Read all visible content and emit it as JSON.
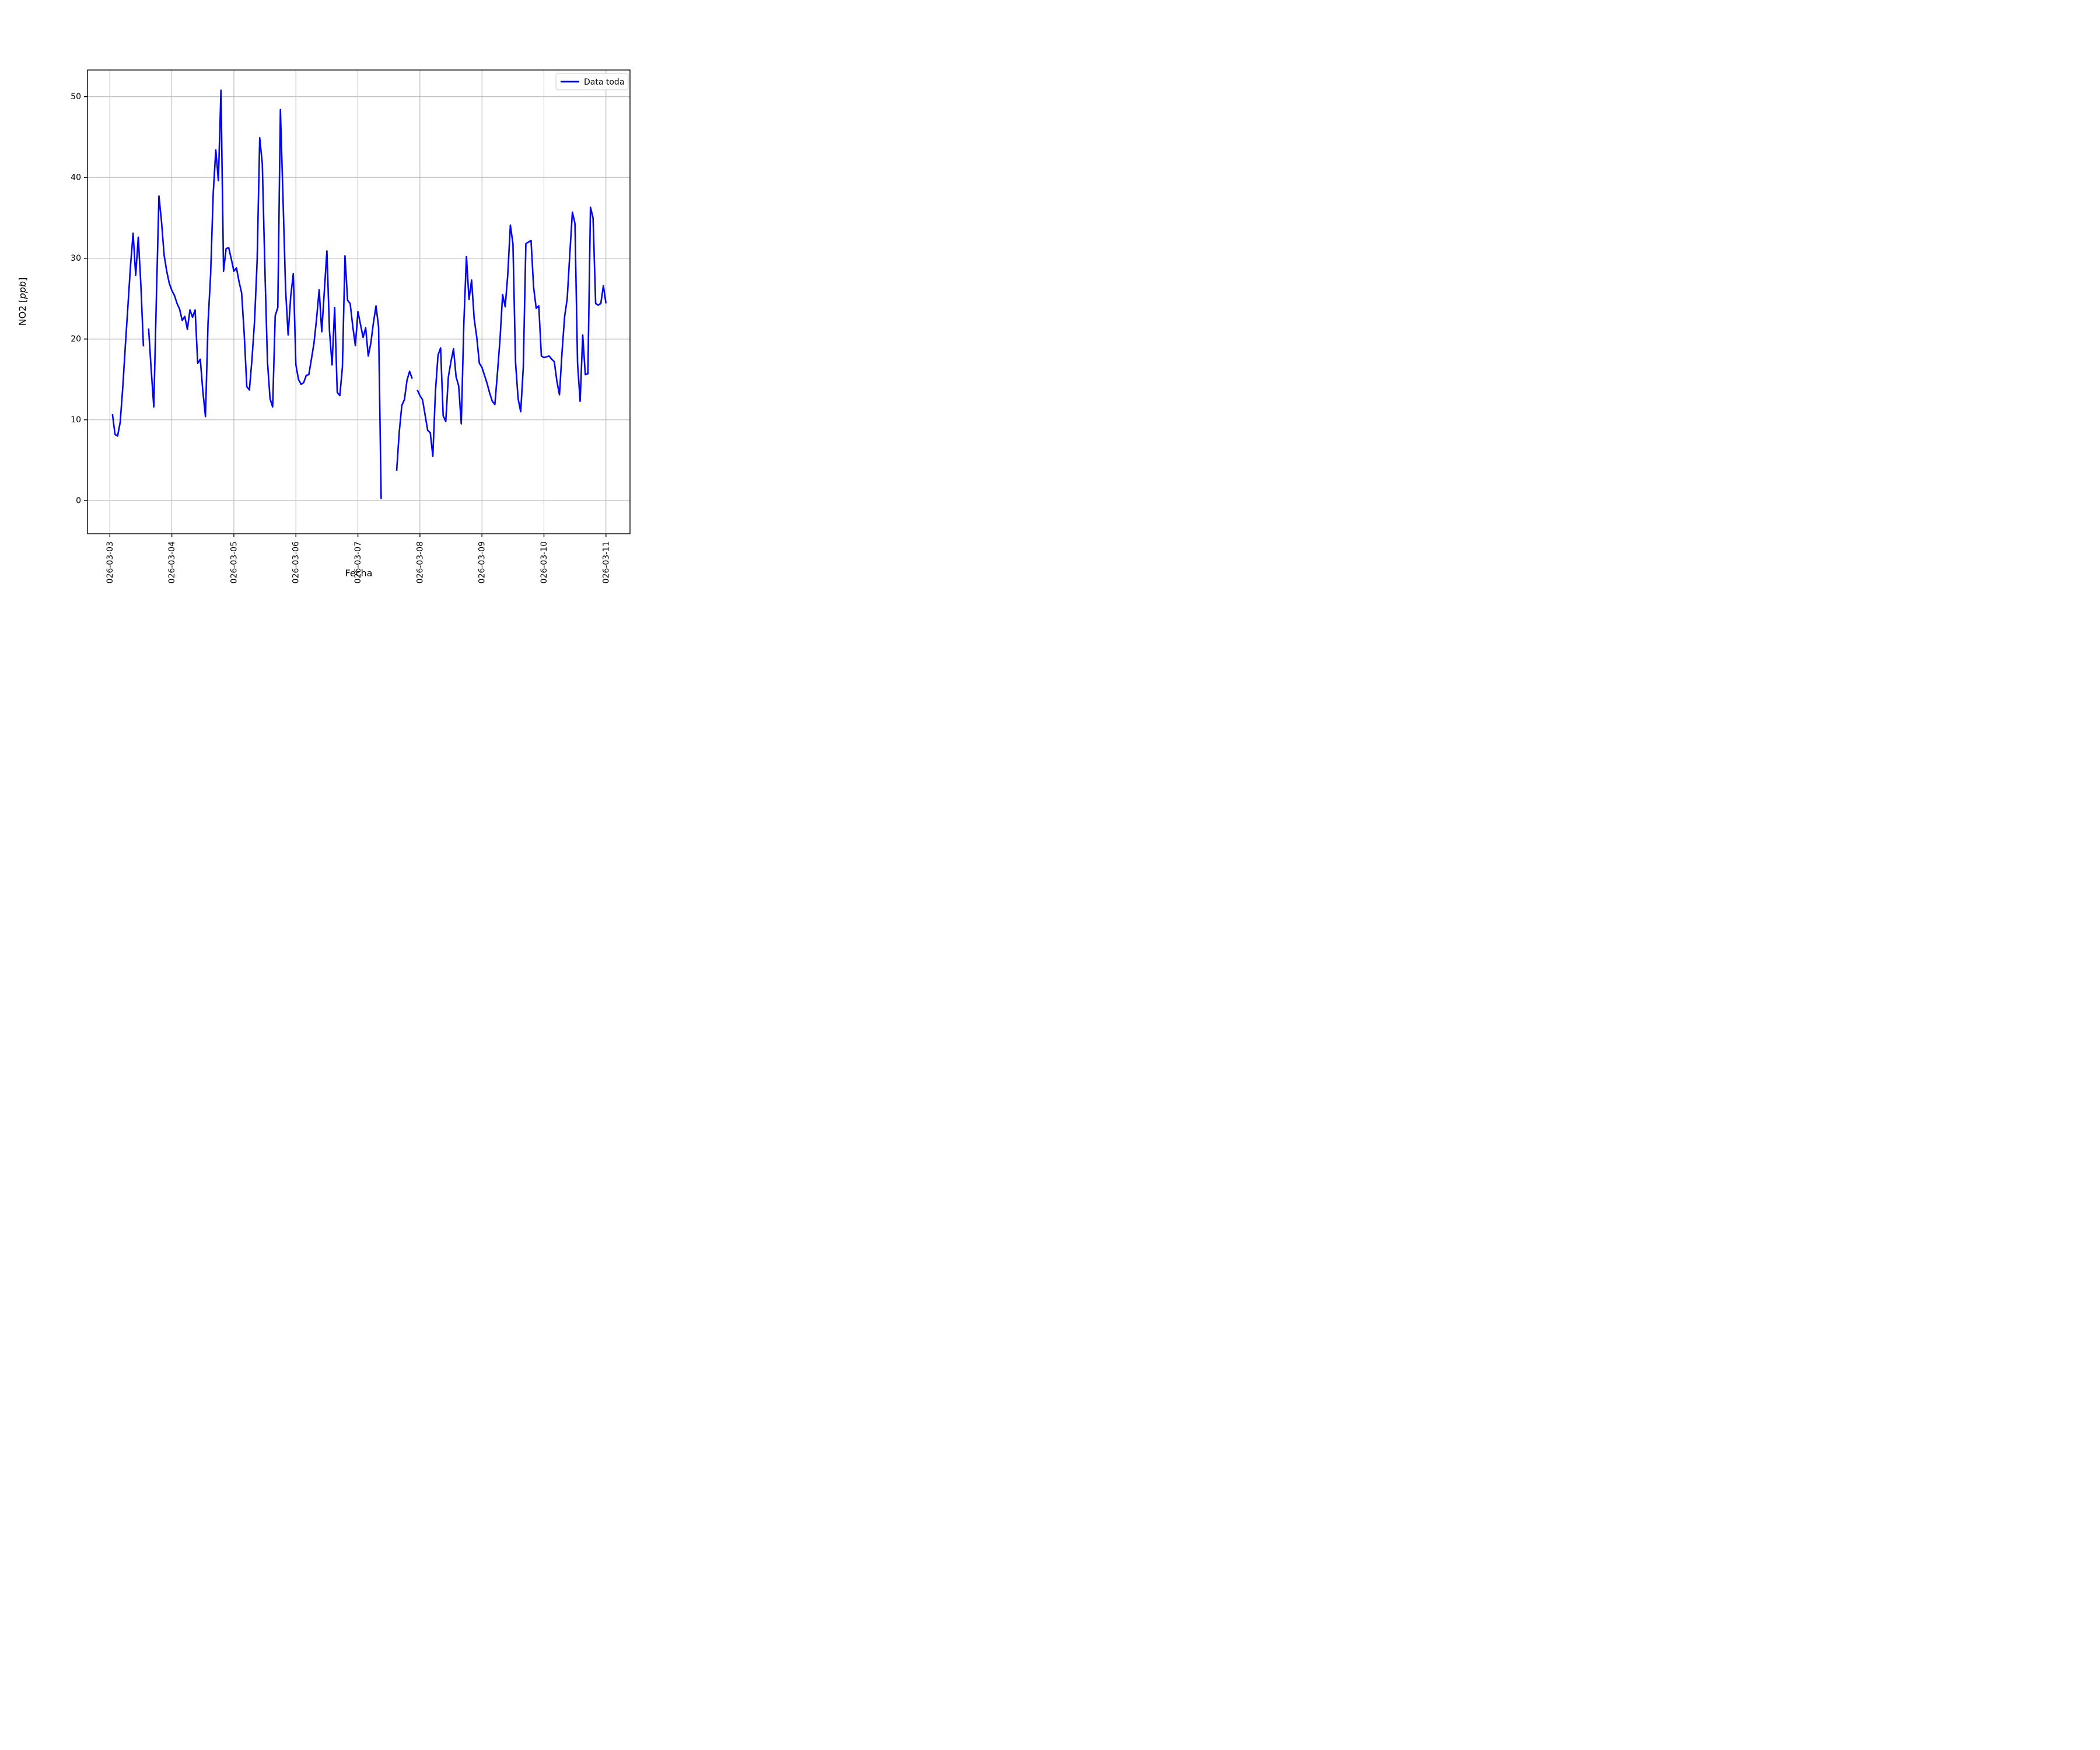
{
  "colors": {
    "line": "#0000ff",
    "grid": "#b0b0b0",
    "spine": "#000000",
    "legend_edge": "#cccccc",
    "background": "#ffffff"
  },
  "chart_data": {
    "type": "line",
    "title": "",
    "xlabel": "Fecha",
    "ylabel": "NO2 [ppb]",
    "ylabel_prefix": "NO2 [",
    "ylabel_unit_italic": "ppb",
    "ylabel_suffix": "]",
    "legend": {
      "position": "upper right",
      "entries": [
        "Data toda"
      ]
    },
    "grid": true,
    "x_start": "2026-03-03 00:00",
    "x_step_hours": 1,
    "x_tick_labels": [
      "2026-03-03",
      "2026-03-04",
      "2026-03-05",
      "2026-03-06",
      "2026-03-07",
      "2026-03-08",
      "2026-03-09",
      "2026-03-10",
      "2026-03-11"
    ],
    "x_tick_hours": [
      0,
      24,
      48,
      72,
      96,
      120,
      144,
      168,
      192
    ],
    "y_ticks": [
      0,
      10,
      20,
      30,
      40,
      50
    ],
    "xlim_hours": [
      -8.65,
      201.3
    ],
    "ylim": [
      -4.1,
      53.3
    ],
    "series": [
      {
        "name": "Data toda",
        "color": "#0000ff",
        "values": [
          null,
          10.7,
          8.2,
          8.0,
          9.7,
          14.0,
          19.2,
          24.1,
          29.1,
          33.1,
          27.9,
          32.6,
          26.7,
          19.1,
          null,
          21.3,
          16.2,
          11.6,
          25.0,
          37.7,
          34.5,
          30.4,
          28.4,
          26.9,
          26.0,
          25.4,
          24.4,
          23.7,
          22.3,
          22.8,
          21.2,
          23.6,
          22.7,
          23.6,
          17.0,
          17.5,
          13.5,
          10.4,
          22.0,
          28.0,
          38.0,
          43.4,
          39.6,
          50.8,
          28.4,
          31.2,
          31.3,
          29.9,
          28.4,
          28.8,
          27.1,
          25.7,
          20.6,
          14.1,
          13.7,
          17.5,
          22.2,
          29.7,
          44.9,
          41.7,
          28.7,
          17.2,
          12.6,
          11.6,
          22.9,
          23.9,
          48.4,
          37.6,
          26.2,
          20.5,
          25.3,
          28.1,
          16.8,
          15.0,
          14.4,
          14.6,
          15.5,
          15.6,
          17.5,
          19.5,
          22.5,
          26.1,
          20.9,
          25.9,
          30.9,
          21.0,
          16.8,
          23.9,
          13.4,
          13.0,
          16.5,
          30.3,
          24.8,
          24.4,
          21.6,
          19.2,
          23.4,
          21.8,
          20.2,
          21.4,
          17.9,
          19.5,
          22.0,
          24.1,
          21.5,
          0.2,
          null,
          null,
          null,
          null,
          null,
          3.7,
          8.5,
          11.8,
          12.5,
          14.9,
          16.0,
          15.1,
          null,
          13.7,
          13.0,
          12.5,
          10.6,
          8.7,
          8.4,
          5.5,
          13.5,
          18.0,
          18.9,
          10.5,
          9.8,
          15.3,
          17.2,
          18.8,
          15.3,
          14.2,
          9.5,
          22.0,
          30.2,
          24.9,
          27.3,
          22.5,
          20.2,
          17.0,
          16.5,
          15.5,
          14.5,
          13.3,
          12.3,
          11.9,
          15.8,
          20.0,
          25.5,
          24.0,
          28.0,
          34.1,
          31.8,
          17.1,
          12.6,
          11.0,
          16.5,
          31.8,
          32.0,
          32.2,
          26.4,
          23.8,
          24.1,
          17.9,
          17.7,
          17.8,
          17.9,
          17.5,
          17.2,
          14.8,
          13.1,
          18.4,
          22.8,
          25.0,
          30.5,
          35.7,
          34.3,
          17.0,
          12.3,
          20.5,
          15.6,
          15.7,
          36.3,
          35.0,
          24.4,
          24.2,
          24.4,
          26.6,
          24.4
        ]
      }
    ]
  }
}
